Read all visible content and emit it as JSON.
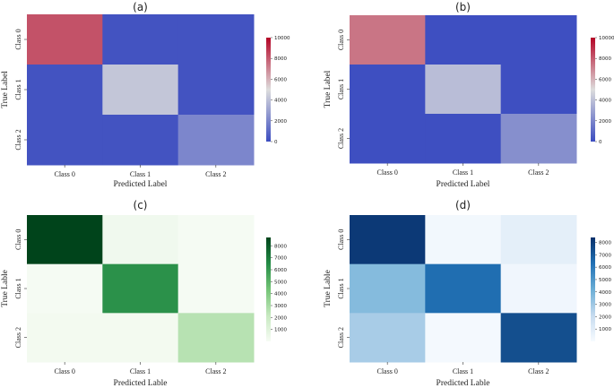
{
  "chart_data": [
    {
      "id": "a",
      "type": "heatmap",
      "title": "(a)",
      "xlabel": "Predicted Label",
      "ylabel": "True Label",
      "x_categories": [
        "Class 0",
        "Class 1",
        "Class 2"
      ],
      "y_categories": [
        "Class 0",
        "Class 1",
        "Class 2"
      ],
      "values": [
        [
          8200,
          250,
          250
        ],
        [
          250,
          4200,
          250
        ],
        [
          250,
          250,
          2000
        ]
      ],
      "colormap": "coolwarm",
      "colorbar": {
        "min": 0,
        "max": 10000,
        "ticks": [
          0,
          2000,
          4000,
          6000,
          8000,
          10000
        ]
      }
    },
    {
      "id": "b",
      "type": "heatmap",
      "title": "(b)",
      "xlabel": "Predicted Label",
      "ylabel": "True Label",
      "x_categories": [
        "Class 0",
        "Class 1",
        "Class 2"
      ],
      "y_categories": [
        "Class 0",
        "Class 1",
        "Class 2"
      ],
      "values": [
        [
          7400,
          100,
          100
        ],
        [
          100,
          3900,
          100
        ],
        [
          100,
          100,
          2300
        ]
      ],
      "colormap": "coolwarm",
      "colorbar": {
        "min": 0,
        "max": 10000,
        "ticks": [
          0,
          2000,
          4000,
          6000,
          8000,
          10000
        ]
      }
    },
    {
      "id": "c",
      "type": "heatmap",
      "title": "(c)",
      "xlabel": "Predicted Lable",
      "ylabel": "True Lable",
      "x_categories": [
        "Class 0",
        "Class 1",
        "Class 2"
      ],
      "y_categories": [
        "Class 0",
        "Class 1",
        "Class 2"
      ],
      "values": [
        [
          8700,
          300,
          100
        ],
        [
          100,
          6300,
          100
        ],
        [
          200,
          200,
          2600
        ]
      ],
      "colormap": "Greens",
      "colorbar": {
        "min": 0,
        "max": 8700,
        "ticks": [
          1000,
          2000,
          3000,
          4000,
          5000,
          6000,
          7000,
          8000
        ]
      }
    },
    {
      "id": "d",
      "type": "heatmap",
      "title": "(d)",
      "xlabel": "Predicted Lable",
      "ylabel": "True Lable",
      "x_categories": [
        "Class 0",
        "Class 1",
        "Class 2"
      ],
      "y_categories": [
        "Class 0",
        "Class 1",
        "Class 2"
      ],
      "values": [
        [
          8100,
          200,
          800
        ],
        [
          3600,
          6400,
          300
        ],
        [
          2800,
          150,
          7400
        ]
      ],
      "colormap": "Blues",
      "colorbar": {
        "min": 0,
        "max": 8400,
        "ticks": [
          1000,
          2000,
          3000,
          4000,
          5000,
          6000,
          7000,
          8000
        ]
      }
    }
  ]
}
